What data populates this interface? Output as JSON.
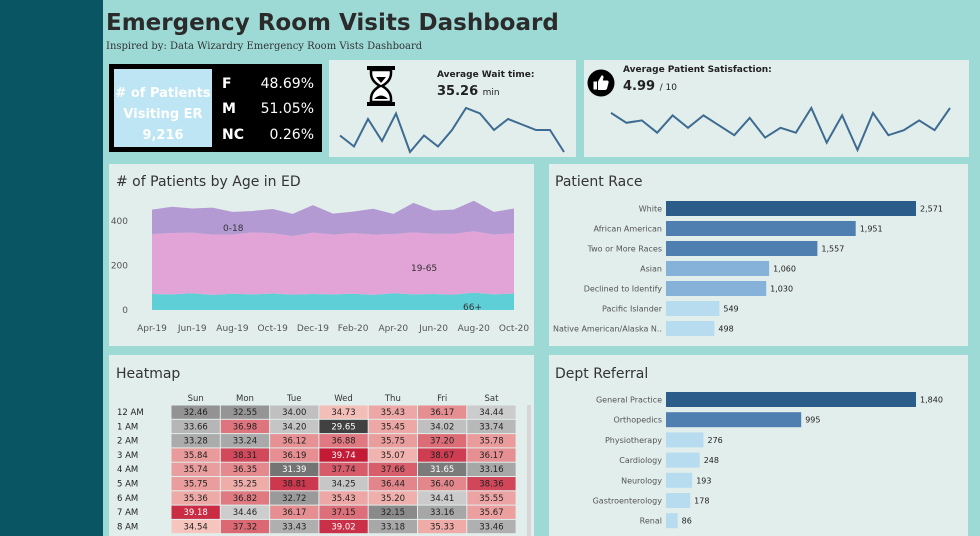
{
  "header": {
    "title": "Emergency Room Visits Dashboard",
    "subtitle": "Inspired by: Data Wizardry Emergency Room Vists Dashboard"
  },
  "patients_card": {
    "label_line1": "# of Patients",
    "label_line2": "Visiting ER",
    "total": "9,216",
    "genders": [
      {
        "label": "F",
        "value": "48.69%"
      },
      {
        "label": "M",
        "value": "51.05%"
      },
      {
        "label": "NC",
        "value": "0.26%"
      }
    ]
  },
  "wait_time": {
    "label": "Average Wait time:",
    "value": "35.26",
    "unit": "min",
    "icon": "hourglass-icon",
    "trend": [
      33,
      31,
      36,
      32,
      37,
      30,
      33,
      31,
      34,
      38,
      37,
      34,
      36,
      35,
      34,
      34,
      30
    ]
  },
  "satisfaction": {
    "label": "Average Patient Satisfaction:",
    "value": "4.99",
    "unit": "/ 10",
    "icon": "thumbs-up-icon",
    "trend": [
      5.4,
      5.0,
      5.1,
      4.6,
      5.3,
      4.8,
      5.3,
      4.9,
      4.5,
      5.2,
      4.4,
      4.8,
      4.6,
      5.6,
      4.2,
      5.3,
      3.9,
      5.4,
      4.5,
      4.7,
      5.1,
      4.7,
      5.6
    ]
  },
  "colors": {
    "sidebar": "#0a5563",
    "accent_bar_dark": "#2b5c8a",
    "accent_bar_light": "#b7dcf0",
    "age_older": "#b39ad3",
    "age_adult": "#e2a3d6",
    "age_young": "#5ecfd7"
  },
  "chart_data": [
    {
      "type": "area",
      "title": "# of Patients by Age in ED",
      "x": [
        "Apr-19",
        "May-19",
        "Jun-19",
        "Jul-19",
        "Aug-19",
        "Sep-19",
        "Oct-19",
        "Nov-19",
        "Dec-19",
        "Jan-20",
        "Feb-20",
        "Mar-20",
        "Apr-20",
        "May-20",
        "Jun-20",
        "Jul-20",
        "Aug-20",
        "Sep-20",
        "Oct-20"
      ],
      "tick_labels": [
        "Apr-19",
        "Jun-19",
        "Aug-19",
        "Oct-19",
        "Dec-19",
        "Feb-20",
        "Apr-20",
        "Jun-20",
        "Aug-20",
        "Oct-20"
      ],
      "yticks": [
        "0",
        "200",
        "400"
      ],
      "ylim": [
        0,
        520
      ],
      "series": [
        {
          "name": "66+",
          "values": [
            72,
            70,
            75,
            68,
            73,
            70,
            74,
            69,
            72,
            70,
            73,
            68,
            75,
            70,
            72,
            69,
            78,
            70,
            74
          ]
        },
        {
          "name": "19-65",
          "values": [
            268,
            275,
            272,
            270,
            265,
            278,
            270,
            262,
            275,
            268,
            272,
            270,
            265,
            278,
            270,
            272,
            275,
            268,
            270
          ]
        },
        {
          "name": "0-18",
          "values": [
            110,
            118,
            108,
            121,
            102,
            96,
            109,
            100,
            123,
            94,
            96,
            116,
            91,
            132,
            104,
            109,
            137,
            102,
            111
          ]
        }
      ],
      "annotations": [
        "0-18",
        "19-65",
        "66+"
      ]
    },
    {
      "type": "bar",
      "title": "Patient Race",
      "categories": [
        "White",
        "African American",
        "Two or More Races",
        "Asian",
        "Declined to Identify",
        "Pacific Islander",
        "Native American/Alaska N.."
      ],
      "values": [
        2571,
        1951,
        1557,
        1060,
        1030,
        549,
        498
      ],
      "labels": [
        "2,571",
        "1,951",
        "1,557",
        "1,060",
        "1,030",
        "549",
        "498"
      ]
    },
    {
      "type": "bar",
      "title": "Dept Referral",
      "categories": [
        "General Practice",
        "Orthopedics",
        "Physiotherapy",
        "Cardiology",
        "Neurology",
        "Gastroenterology",
        "Renal"
      ],
      "values": [
        1840,
        995,
        276,
        248,
        193,
        178,
        86
      ],
      "labels": [
        "1,840",
        "995",
        "276",
        "248",
        "193",
        "178",
        "86"
      ]
    },
    {
      "type": "heatmap",
      "title": "Heatmap",
      "columns": [
        "Sun",
        "Mon",
        "Tue",
        "Wed",
        "Thu",
        "Fri",
        "Sat"
      ],
      "rows": [
        "12 AM",
        "1 AM",
        "2 AM",
        "3 AM",
        "4 AM",
        "5 AM",
        "6 AM",
        "7 AM",
        "8 AM"
      ],
      "values": [
        [
          "32.46",
          "32.55",
          "34.00",
          "34.73",
          "35.43",
          "36.17",
          "34.44"
        ],
        [
          "33.66",
          "36.98",
          "34.20",
          "29.65",
          "35.45",
          "34.02",
          "33.74"
        ],
        [
          "33.28",
          "33.24",
          "36.12",
          "36.88",
          "35.75",
          "37.20",
          "35.78"
        ],
        [
          "35.84",
          "38.31",
          "36.19",
          "39.74",
          "35.07",
          "38.67",
          "36.17"
        ],
        [
          "35.74",
          "36.35",
          "31.39",
          "37.74",
          "37.66",
          "31.65",
          "33.16"
        ],
        [
          "35.75",
          "35.25",
          "38.81",
          "34.25",
          "36.44",
          "36.40",
          "38.36"
        ],
        [
          "35.36",
          "36.82",
          "32.72",
          "35.43",
          "35.20",
          "34.41",
          "35.55"
        ],
        [
          "39.18",
          "34.46",
          "36.17",
          "37.15",
          "32.15",
          "33.16",
          "35.67"
        ],
        [
          "34.54",
          "37.32",
          "33.43",
          "39.02",
          "33.18",
          "35.33",
          "33.46"
        ]
      ]
    }
  ]
}
